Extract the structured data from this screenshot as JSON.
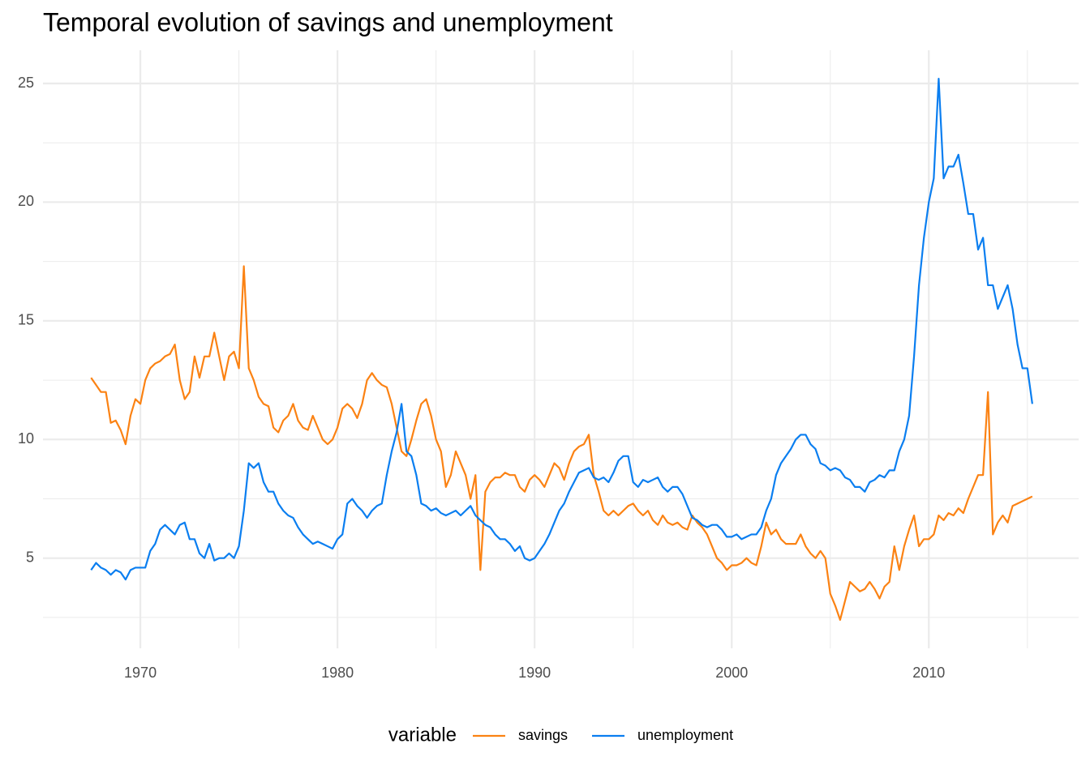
{
  "chart_data": {
    "type": "line",
    "title": "Temporal evolution of savings and unemployment",
    "legend_title": "variable",
    "legend_position": "bottom",
    "grid": true,
    "xlim": [
      1965.06,
      2017.6
    ],
    "xticks": [
      1970,
      1980,
      1990,
      2000,
      2010
    ],
    "ylim": [
      1.2,
      26.4
    ],
    "yticks": [
      5,
      10,
      15,
      20,
      25
    ],
    "x": [
      1967.5,
      1967.75,
      1968,
      1968.25,
      1968.5,
      1968.75,
      1969,
      1969.25,
      1969.5,
      1969.75,
      1970,
      1970.25,
      1970.5,
      1970.75,
      1971,
      1971.25,
      1971.5,
      1971.75,
      1972,
      1972.25,
      1972.5,
      1972.75,
      1973,
      1973.25,
      1973.5,
      1973.75,
      1974,
      1974.25,
      1974.5,
      1974.75,
      1975,
      1975.25,
      1975.5,
      1975.75,
      1976,
      1976.25,
      1976.5,
      1976.75,
      1977,
      1977.25,
      1977.5,
      1977.75,
      1978,
      1978.25,
      1978.5,
      1978.75,
      1979,
      1979.25,
      1979.5,
      1979.75,
      1980,
      1980.25,
      1980.5,
      1980.75,
      1981,
      1981.25,
      1981.5,
      1981.75,
      1982,
      1982.25,
      1982.5,
      1982.75,
      1983,
      1983.25,
      1983.5,
      1983.75,
      1984,
      1984.25,
      1984.5,
      1984.75,
      1985,
      1985.25,
      1985.5,
      1985.75,
      1986,
      1986.25,
      1986.5,
      1986.75,
      1987,
      1987.25,
      1987.5,
      1987.75,
      1988,
      1988.25,
      1988.5,
      1988.75,
      1989,
      1989.25,
      1989.5,
      1989.75,
      1990,
      1990.25,
      1990.5,
      1990.75,
      1991,
      1991.25,
      1991.5,
      1991.75,
      1992,
      1992.25,
      1992.5,
      1992.75,
      1993,
      1993.25,
      1993.5,
      1993.75,
      1994,
      1994.25,
      1994.5,
      1994.75,
      1995,
      1995.25,
      1995.5,
      1995.75,
      1996,
      1996.25,
      1996.5,
      1996.75,
      1997,
      1997.25,
      1997.5,
      1997.75,
      1998,
      1998.25,
      1998.5,
      1998.75,
      1999,
      1999.25,
      1999.5,
      1999.75,
      2000,
      2000.25,
      2000.5,
      2000.75,
      2001,
      2001.25,
      2001.5,
      2001.75,
      2002,
      2002.25,
      2002.5,
      2002.75,
      2003,
      2003.25,
      2003.5,
      2003.75,
      2004,
      2004.25,
      2004.5,
      2004.75,
      2005,
      2005.25,
      2005.5,
      2005.75,
      2006,
      2006.25,
      2006.5,
      2006.75,
      2007,
      2007.25,
      2007.5,
      2007.75,
      2008,
      2008.25,
      2008.5,
      2008.75,
      2009,
      2009.25,
      2009.5,
      2009.75,
      2010,
      2010.25,
      2010.5,
      2010.75,
      2011,
      2011.25,
      2011.5,
      2011.75,
      2012,
      2012.25,
      2012.5,
      2012.75,
      2013,
      2013.25,
      2013.5,
      2013.75,
      2014,
      2014.25,
      2014.5,
      2014.75,
      2015,
      2015.25
    ],
    "series": [
      {
        "name": "savings",
        "color": "#fb8213",
        "values": [
          12.6,
          12.3,
          12.0,
          12.0,
          10.7,
          10.8,
          10.4,
          9.8,
          11.0,
          11.7,
          11.5,
          12.5,
          13.0,
          13.2,
          13.3,
          13.5,
          13.6,
          14.0,
          12.5,
          11.7,
          12.0,
          13.5,
          12.6,
          13.5,
          13.5,
          14.5,
          13.5,
          12.5,
          13.5,
          13.7,
          13.0,
          17.3,
          13.0,
          12.5,
          11.8,
          11.5,
          11.4,
          10.5,
          10.3,
          10.8,
          11.0,
          11.5,
          10.8,
          10.5,
          10.4,
          11.0,
          10.5,
          10.0,
          9.8,
          10.0,
          10.5,
          11.3,
          11.5,
          11.3,
          10.9,
          11.5,
          12.5,
          12.8,
          12.5,
          12.3,
          12.2,
          11.5,
          10.5,
          9.5,
          9.3,
          10.0,
          10.8,
          11.5,
          11.7,
          11.0,
          10.0,
          9.5,
          8.0,
          8.5,
          9.5,
          9.0,
          8.5,
          7.5,
          8.5,
          4.5,
          7.8,
          8.2,
          8.4,
          8.4,
          8.6,
          8.5,
          8.5,
          8.0,
          7.8,
          8.3,
          8.5,
          8.3,
          8.0,
          8.5,
          9.0,
          8.8,
          8.3,
          9.0,
          9.5,
          9.7,
          9.8,
          10.2,
          8.5,
          7.8,
          7.0,
          6.8,
          7.0,
          6.8,
          7.0,
          7.2,
          7.3,
          7.0,
          6.8,
          7.0,
          6.6,
          6.4,
          6.8,
          6.5,
          6.4,
          6.5,
          6.3,
          6.2,
          6.8,
          6.5,
          6.3,
          6.0,
          5.5,
          5.0,
          4.8,
          4.5,
          4.7,
          4.7,
          4.8,
          5.0,
          4.8,
          4.7,
          5.5,
          6.5,
          6.0,
          6.2,
          5.8,
          5.6,
          5.6,
          5.6,
          6.0,
          5.5,
          5.2,
          5.0,
          5.3,
          5.0,
          3.5,
          3.0,
          2.4,
          3.2,
          4.0,
          3.8,
          3.6,
          3.7,
          4.0,
          3.7,
          3.3,
          3.8,
          4.0,
          5.5,
          4.5,
          5.5,
          6.2,
          6.8,
          5.5,
          5.8,
          5.8,
          6.0,
          6.8,
          6.6,
          6.9,
          6.8,
          7.1,
          6.9,
          7.5,
          8.0,
          8.5,
          8.5,
          12.0,
          6.0,
          6.5,
          6.8,
          6.5,
          7.2,
          7.3,
          7.4,
          7.5,
          7.6
        ]
      },
      {
        "name": "unemployment",
        "color": "#0a7ef0",
        "values": [
          4.5,
          4.8,
          4.6,
          4.5,
          4.3,
          4.5,
          4.4,
          4.1,
          4.5,
          4.6,
          4.6,
          4.6,
          5.3,
          5.6,
          6.2,
          6.4,
          6.2,
          6.0,
          6.4,
          6.5,
          5.8,
          5.8,
          5.2,
          5.0,
          5.6,
          4.9,
          5.0,
          5.0,
          5.2,
          5.0,
          5.5,
          7.0,
          9.0,
          8.8,
          9.0,
          8.2,
          7.8,
          7.8,
          7.3,
          7.0,
          6.8,
          6.7,
          6.3,
          6.0,
          5.8,
          5.6,
          5.7,
          5.6,
          5.5,
          5.4,
          5.8,
          6.0,
          7.3,
          7.5,
          7.2,
          7.0,
          6.7,
          7.0,
          7.2,
          7.3,
          8.5,
          9.5,
          10.3,
          11.5,
          9.5,
          9.3,
          8.5,
          7.3,
          7.2,
          7.0,
          7.1,
          6.9,
          6.8,
          6.9,
          7.0,
          6.8,
          7.0,
          7.2,
          6.8,
          6.6,
          6.4,
          6.3,
          6.0,
          5.8,
          5.8,
          5.6,
          5.3,
          5.5,
          5.0,
          4.9,
          5.0,
          5.3,
          5.6,
          6.0,
          6.5,
          7.0,
          7.3,
          7.8,
          8.2,
          8.6,
          8.7,
          8.8,
          8.4,
          8.3,
          8.4,
          8.2,
          8.6,
          9.1,
          9.3,
          9.3,
          8.2,
          8.0,
          8.3,
          8.2,
          8.3,
          8.4,
          8.0,
          7.8,
          8.0,
          8.0,
          7.7,
          7.2,
          6.7,
          6.6,
          6.4,
          6.3,
          6.4,
          6.4,
          6.2,
          5.9,
          5.9,
          6.0,
          5.8,
          5.9,
          6.0,
          6.0,
          6.3,
          7.0,
          7.5,
          8.5,
          9.0,
          9.3,
          9.6,
          10.0,
          10.2,
          10.2,
          9.8,
          9.6,
          9.0,
          8.9,
          8.7,
          8.8,
          8.7,
          8.4,
          8.3,
          8.0,
          8.0,
          7.8,
          8.2,
          8.3,
          8.5,
          8.4,
          8.7,
          8.7,
          9.5,
          10.0,
          11.0,
          13.5,
          16.5,
          18.5,
          20.0,
          21.0,
          25.2,
          21.0,
          21.5,
          21.5,
          22.0,
          20.8,
          19.5,
          19.5,
          18.0,
          18.5,
          16.5,
          16.5,
          15.5,
          16.0,
          16.5,
          15.5,
          14.0,
          13.0,
          13.0,
          11.5
        ]
      }
    ]
  }
}
